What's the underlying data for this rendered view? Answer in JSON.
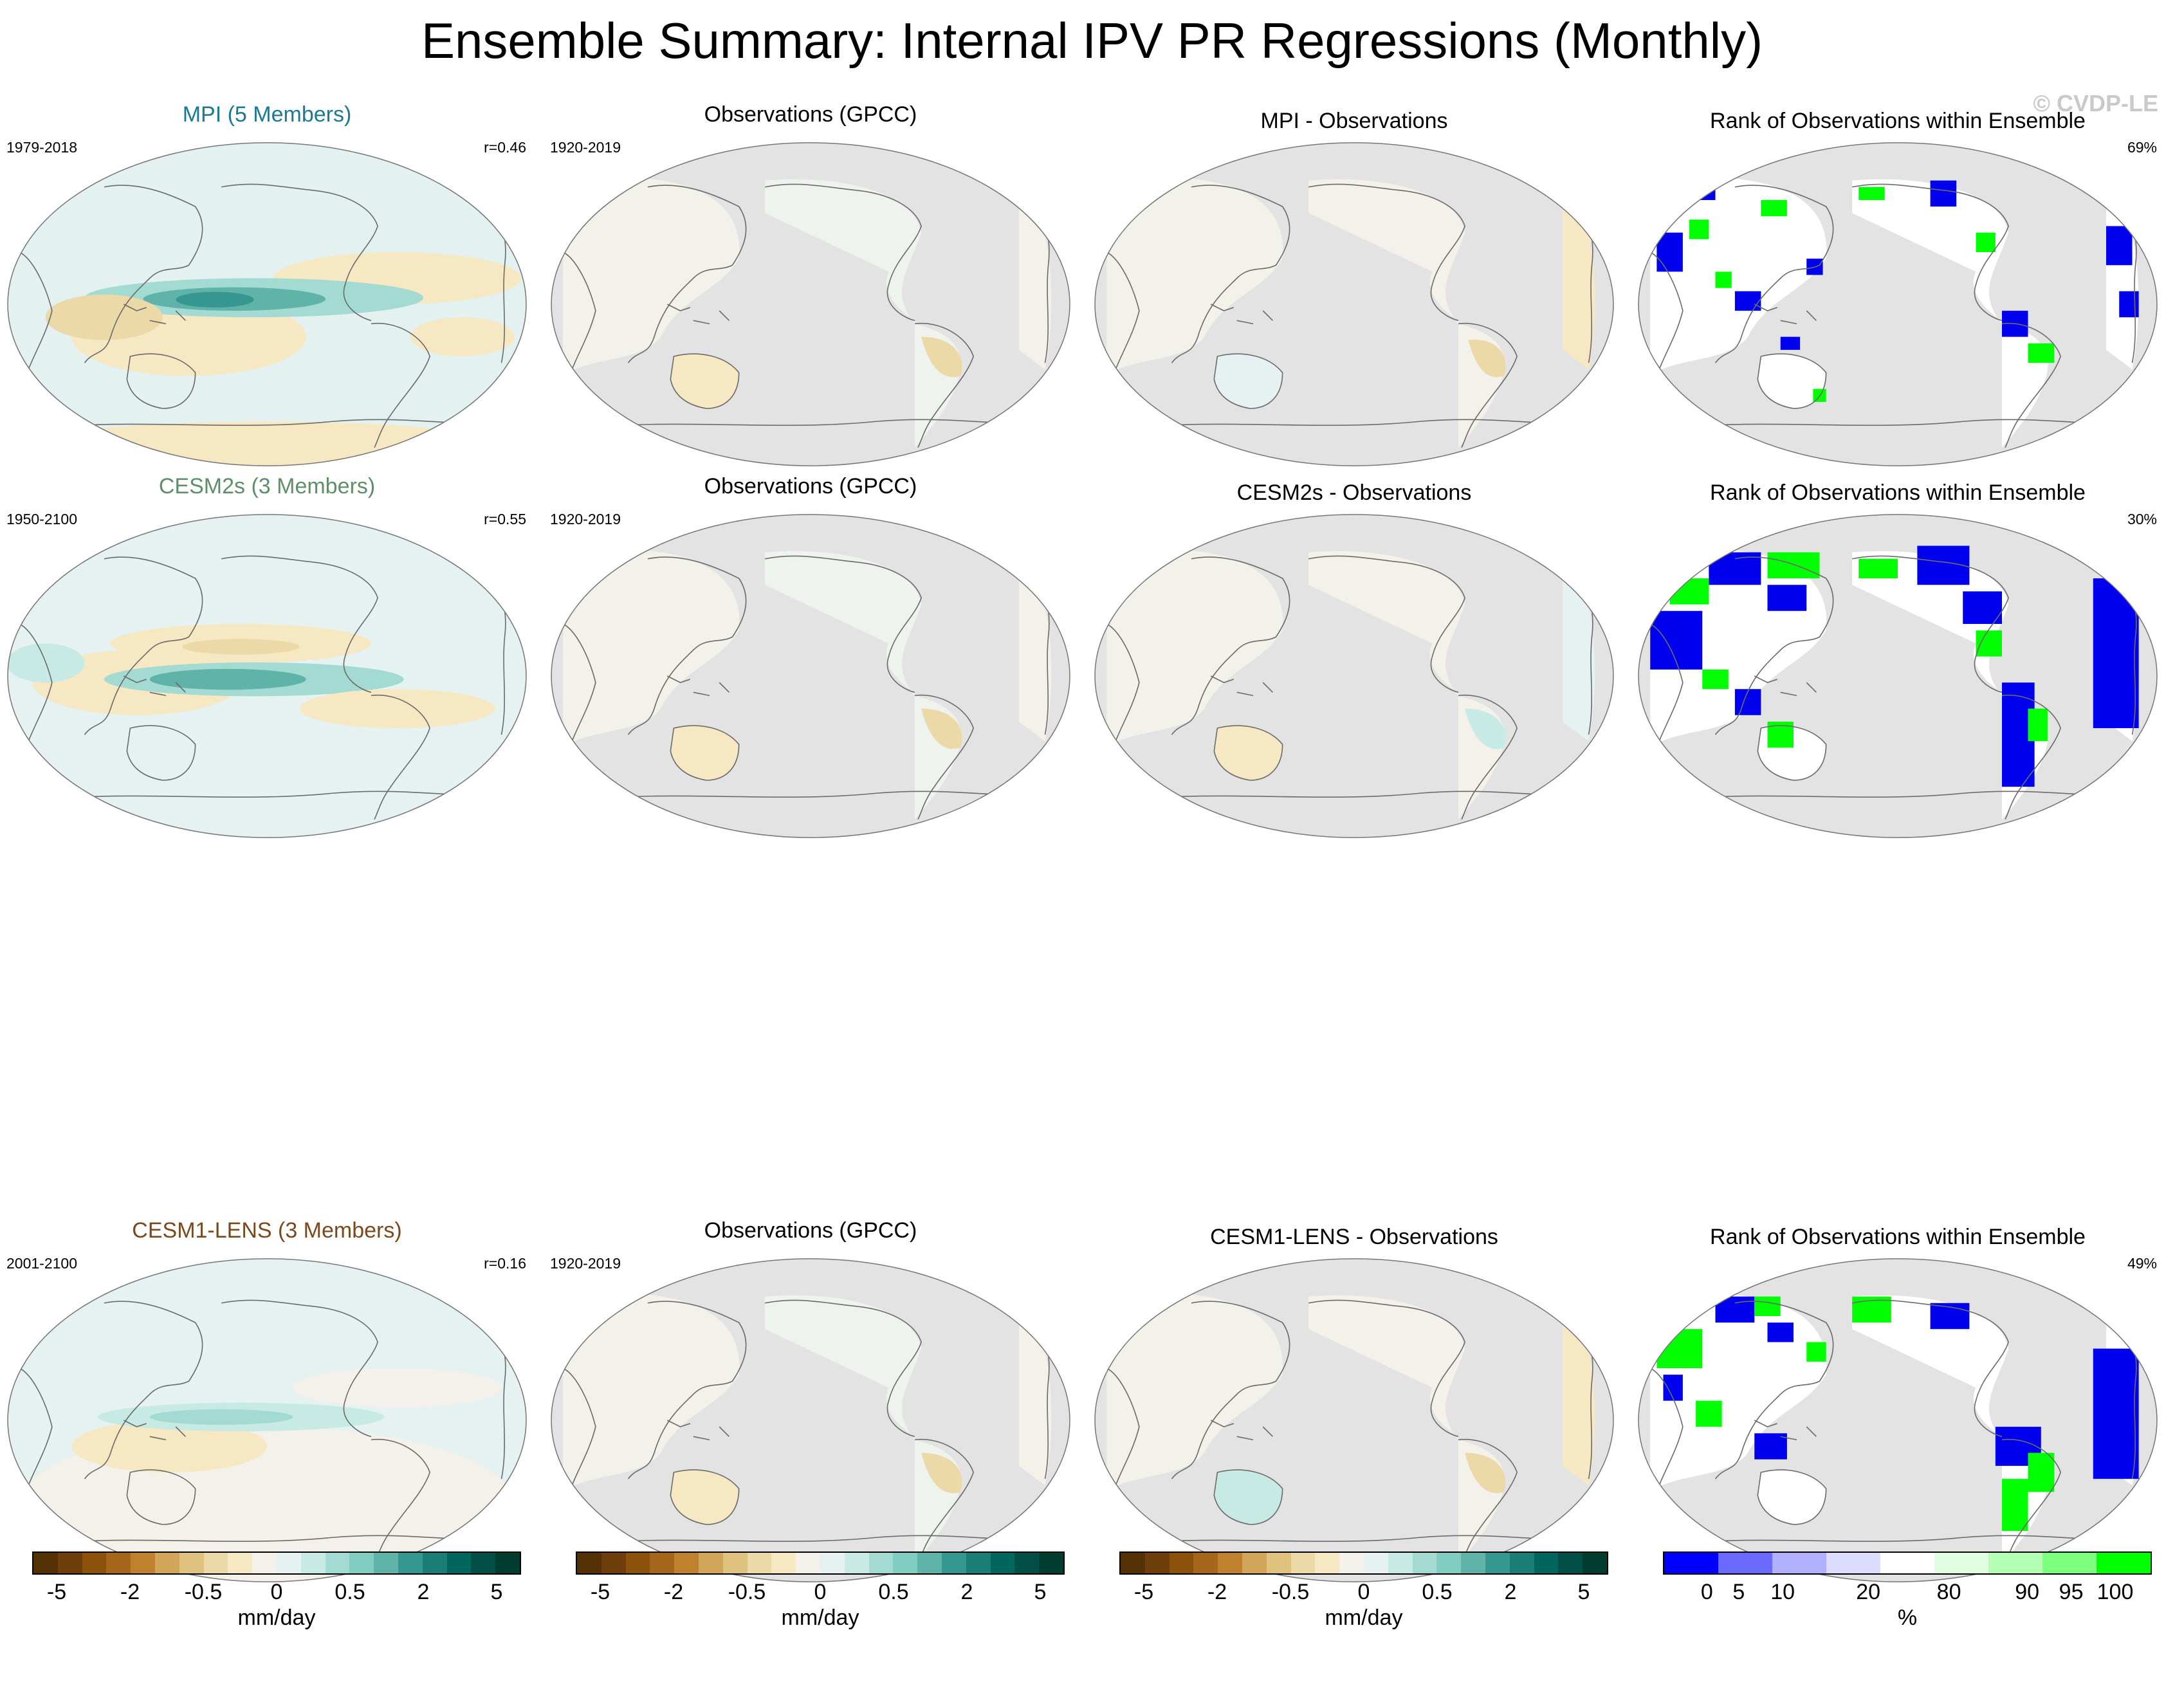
{
  "title": "Ensemble Summary: Internal IPV PR Regressions (Monthly)",
  "credit": "© CVDP-LE",
  "colors": {
    "mpi": "#1a7a96",
    "cesm2s": "#5f8f6a",
    "cesm1": "#7a4a1e",
    "land_obs": "#e3e3e3",
    "ocean_model": "#e3f1f0",
    "rank_blue": "#0000ee",
    "rank_green": "#00ff00"
  },
  "rows": [
    {
      "model": {
        "title": "MPI (5 Members)",
        "years": "1979-2018",
        "corr": "r=0.46"
      },
      "obs": {
        "title": "Observations (GPCC)",
        "years": "1920-2019"
      },
      "diff": {
        "title": "MPI - Observations"
      },
      "rank": {
        "title": "Rank of Observations within Ensemble",
        "pct": "69%"
      }
    },
    {
      "model": {
        "title": "CESM2s (3 Members)",
        "years": "1950-2100",
        "corr": "r=0.55"
      },
      "obs": {
        "title": "Observations (GPCC)",
        "years": "1920-2019"
      },
      "diff": {
        "title": "CESM2s - Observations"
      },
      "rank": {
        "title": "Rank of Observations within Ensemble",
        "pct": "30%"
      }
    },
    {
      "model": {
        "title": "CESM1-LENS (3 Members)",
        "years": "2001-2100",
        "corr": "r=0.16"
      },
      "obs": {
        "title": "Observations (GPCC)",
        "years": "1920-2019"
      },
      "diff": {
        "title": "CESM1-LENS - Observations"
      },
      "rank": {
        "title": "Rank of Observations within Ensemble",
        "pct": "49%"
      }
    }
  ],
  "chart_data": [
    {
      "type": "heatmap",
      "description_kind": "precipitation regression colorbar",
      "unit": "mm/day",
      "tick_labels": [
        "-5",
        "-2",
        "-0.5",
        "0",
        "0.5",
        "2",
        "5"
      ],
      "colors": [
        "#543005",
        "#6e3f0a",
        "#8c510a",
        "#a6671c",
        "#bf812d",
        "#d2a65a",
        "#dfc27d",
        "#ecd9a8",
        "#f6e8c3",
        "#f4f1ea",
        "#e6f2f1",
        "#c7eae5",
        "#a3dbd3",
        "#80cdc1",
        "#5fb3a9",
        "#35978f",
        "#1b7d75",
        "#01665e",
        "#024f48",
        "#003c30"
      ]
    },
    {
      "type": "heatmap",
      "description_kind": "rank colorbar",
      "unit": "%",
      "tick_labels": [
        "0",
        "5",
        "10",
        "20",
        "80",
        "90",
        "95",
        "100"
      ],
      "colors": [
        "#0000ff",
        "#6a6aff",
        "#b0b0ff",
        "#dcdcff",
        "#ffffff",
        "#e0ffe0",
        "#b4ffb4",
        "#7dff7d",
        "#00ff00"
      ]
    }
  ]
}
